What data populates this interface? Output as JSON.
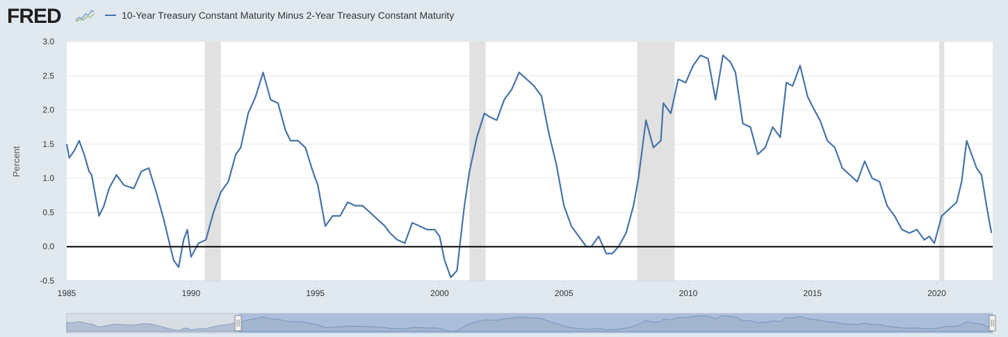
{
  "logo": {
    "text": "FRED"
  },
  "chart_data": {
    "type": "line",
    "title": "10-Year Treasury Constant Maturity Minus 2-Year Treasury Constant Maturity",
    "xlabel": "",
    "ylabel": "Percent",
    "xlim": [
      1985.0,
      2022.25
    ],
    "ylim": [
      -0.5,
      3.0
    ],
    "yticks": [
      3.0,
      2.5,
      2.0,
      1.5,
      1.0,
      0.5,
      0.0,
      -0.5
    ],
    "ytick_labels": [
      "3.0",
      "2.5",
      "2.0",
      "1.5",
      "1.0",
      "0.5",
      "0.0",
      "-0.5"
    ],
    "xticks": [
      1985,
      1990,
      1995,
      2000,
      2005,
      2010,
      2015,
      2020
    ],
    "xtick_labels": [
      "1985",
      "1990",
      "1995",
      "2000",
      "2005",
      "2010",
      "2015",
      "2020"
    ],
    "reference_line": 0.0,
    "recessions": [
      [
        1990.55,
        1991.2
      ],
      [
        2001.2,
        2001.85
      ],
      [
        2007.95,
        2009.45
      ],
      [
        2020.1,
        2020.3
      ]
    ],
    "series": [
      {
        "name": "10-Year Treasury Constant Maturity Minus 2-Year Treasury Constant Maturity",
        "color": "#4572a7",
        "x": [
          1985.0,
          1985.1,
          1985.3,
          1985.5,
          1985.7,
          1985.9,
          1986.0,
          1986.3,
          1986.5,
          1986.7,
          1987.0,
          1987.3,
          1987.7,
          1988.0,
          1988.3,
          1988.6,
          1988.9,
          1989.1,
          1989.3,
          1989.5,
          1989.7,
          1989.85,
          1990.0,
          1990.3,
          1990.6,
          1990.9,
          1991.2,
          1991.5,
          1991.8,
          1992.0,
          1992.3,
          1992.6,
          1992.9,
          1993.2,
          1993.5,
          1993.8,
          1994.0,
          1994.3,
          1994.6,
          1994.9,
          1995.1,
          1995.4,
          1995.7,
          1996.0,
          1996.3,
          1996.6,
          1996.9,
          1997.2,
          1997.5,
          1997.8,
          1998.0,
          1998.3,
          1998.6,
          1998.9,
          1999.2,
          1999.5,
          1999.8,
          2000.0,
          2000.2,
          2000.45,
          2000.7,
          2000.9,
          2001.0,
          2001.2,
          2001.5,
          2001.8,
          2002.0,
          2002.3,
          2002.6,
          2002.9,
          2003.2,
          2003.5,
          2003.8,
          2004.1,
          2004.4,
          2004.7,
          2005.0,
          2005.3,
          2005.6,
          2005.9,
          2006.1,
          2006.4,
          2006.7,
          2006.95,
          2007.2,
          2007.5,
          2007.8,
          2008.0,
          2008.3,
          2008.6,
          2008.9,
          2009.0,
          2009.3,
          2009.6,
          2009.9,
          2010.2,
          2010.5,
          2010.8,
          2011.1,
          2011.4,
          2011.7,
          2011.9,
          2012.2,
          2012.5,
          2012.8,
          2013.1,
          2013.4,
          2013.7,
          2013.95,
          2014.2,
          2014.5,
          2014.8,
          2015.0,
          2015.3,
          2015.6,
          2015.9,
          2016.2,
          2016.5,
          2016.8,
          2017.1,
          2017.4,
          2017.7,
          2018.0,
          2018.3,
          2018.6,
          2018.9,
          2019.2,
          2019.5,
          2019.7,
          2019.9,
          2020.2,
          2020.5,
          2020.8,
          2021.0,
          2021.2,
          2021.4,
          2021.6,
          2021.8,
          2022.0,
          2022.2
        ],
        "values": [
          1.5,
          1.3,
          1.4,
          1.55,
          1.35,
          1.1,
          1.05,
          0.45,
          0.6,
          0.85,
          1.05,
          0.9,
          0.85,
          1.1,
          1.15,
          0.8,
          0.4,
          0.1,
          -0.2,
          -0.3,
          0.1,
          0.25,
          -0.15,
          0.05,
          0.1,
          0.5,
          0.8,
          0.95,
          1.35,
          1.45,
          1.95,
          2.2,
          2.55,
          2.15,
          2.1,
          1.7,
          1.55,
          1.55,
          1.45,
          1.1,
          0.9,
          0.3,
          0.45,
          0.45,
          0.65,
          0.6,
          0.6,
          0.5,
          0.4,
          0.3,
          0.2,
          0.1,
          0.05,
          0.35,
          0.3,
          0.25,
          0.25,
          0.15,
          -0.2,
          -0.45,
          -0.35,
          0.3,
          0.6,
          1.1,
          1.6,
          1.95,
          1.9,
          1.85,
          2.15,
          2.3,
          2.55,
          2.45,
          2.35,
          2.2,
          1.65,
          1.2,
          0.6,
          0.3,
          0.15,
          0.0,
          0.0,
          0.15,
          -0.1,
          -0.1,
          0.0,
          0.2,
          0.6,
          1.0,
          1.85,
          1.45,
          1.55,
          2.1,
          1.95,
          2.45,
          2.4,
          2.65,
          2.8,
          2.75,
          2.15,
          2.8,
          2.7,
          2.55,
          1.8,
          1.75,
          1.35,
          1.45,
          1.75,
          1.6,
          2.4,
          2.35,
          2.65,
          2.2,
          2.05,
          1.85,
          1.55,
          1.45,
          1.15,
          1.05,
          0.95,
          1.25,
          1.0,
          0.95,
          0.6,
          0.45,
          0.25,
          0.2,
          0.25,
          0.1,
          0.15,
          0.05,
          0.45,
          0.55,
          0.65,
          0.95,
          1.55,
          1.35,
          1.15,
          1.05,
          0.6,
          0.2
        ]
      }
    ]
  }
}
